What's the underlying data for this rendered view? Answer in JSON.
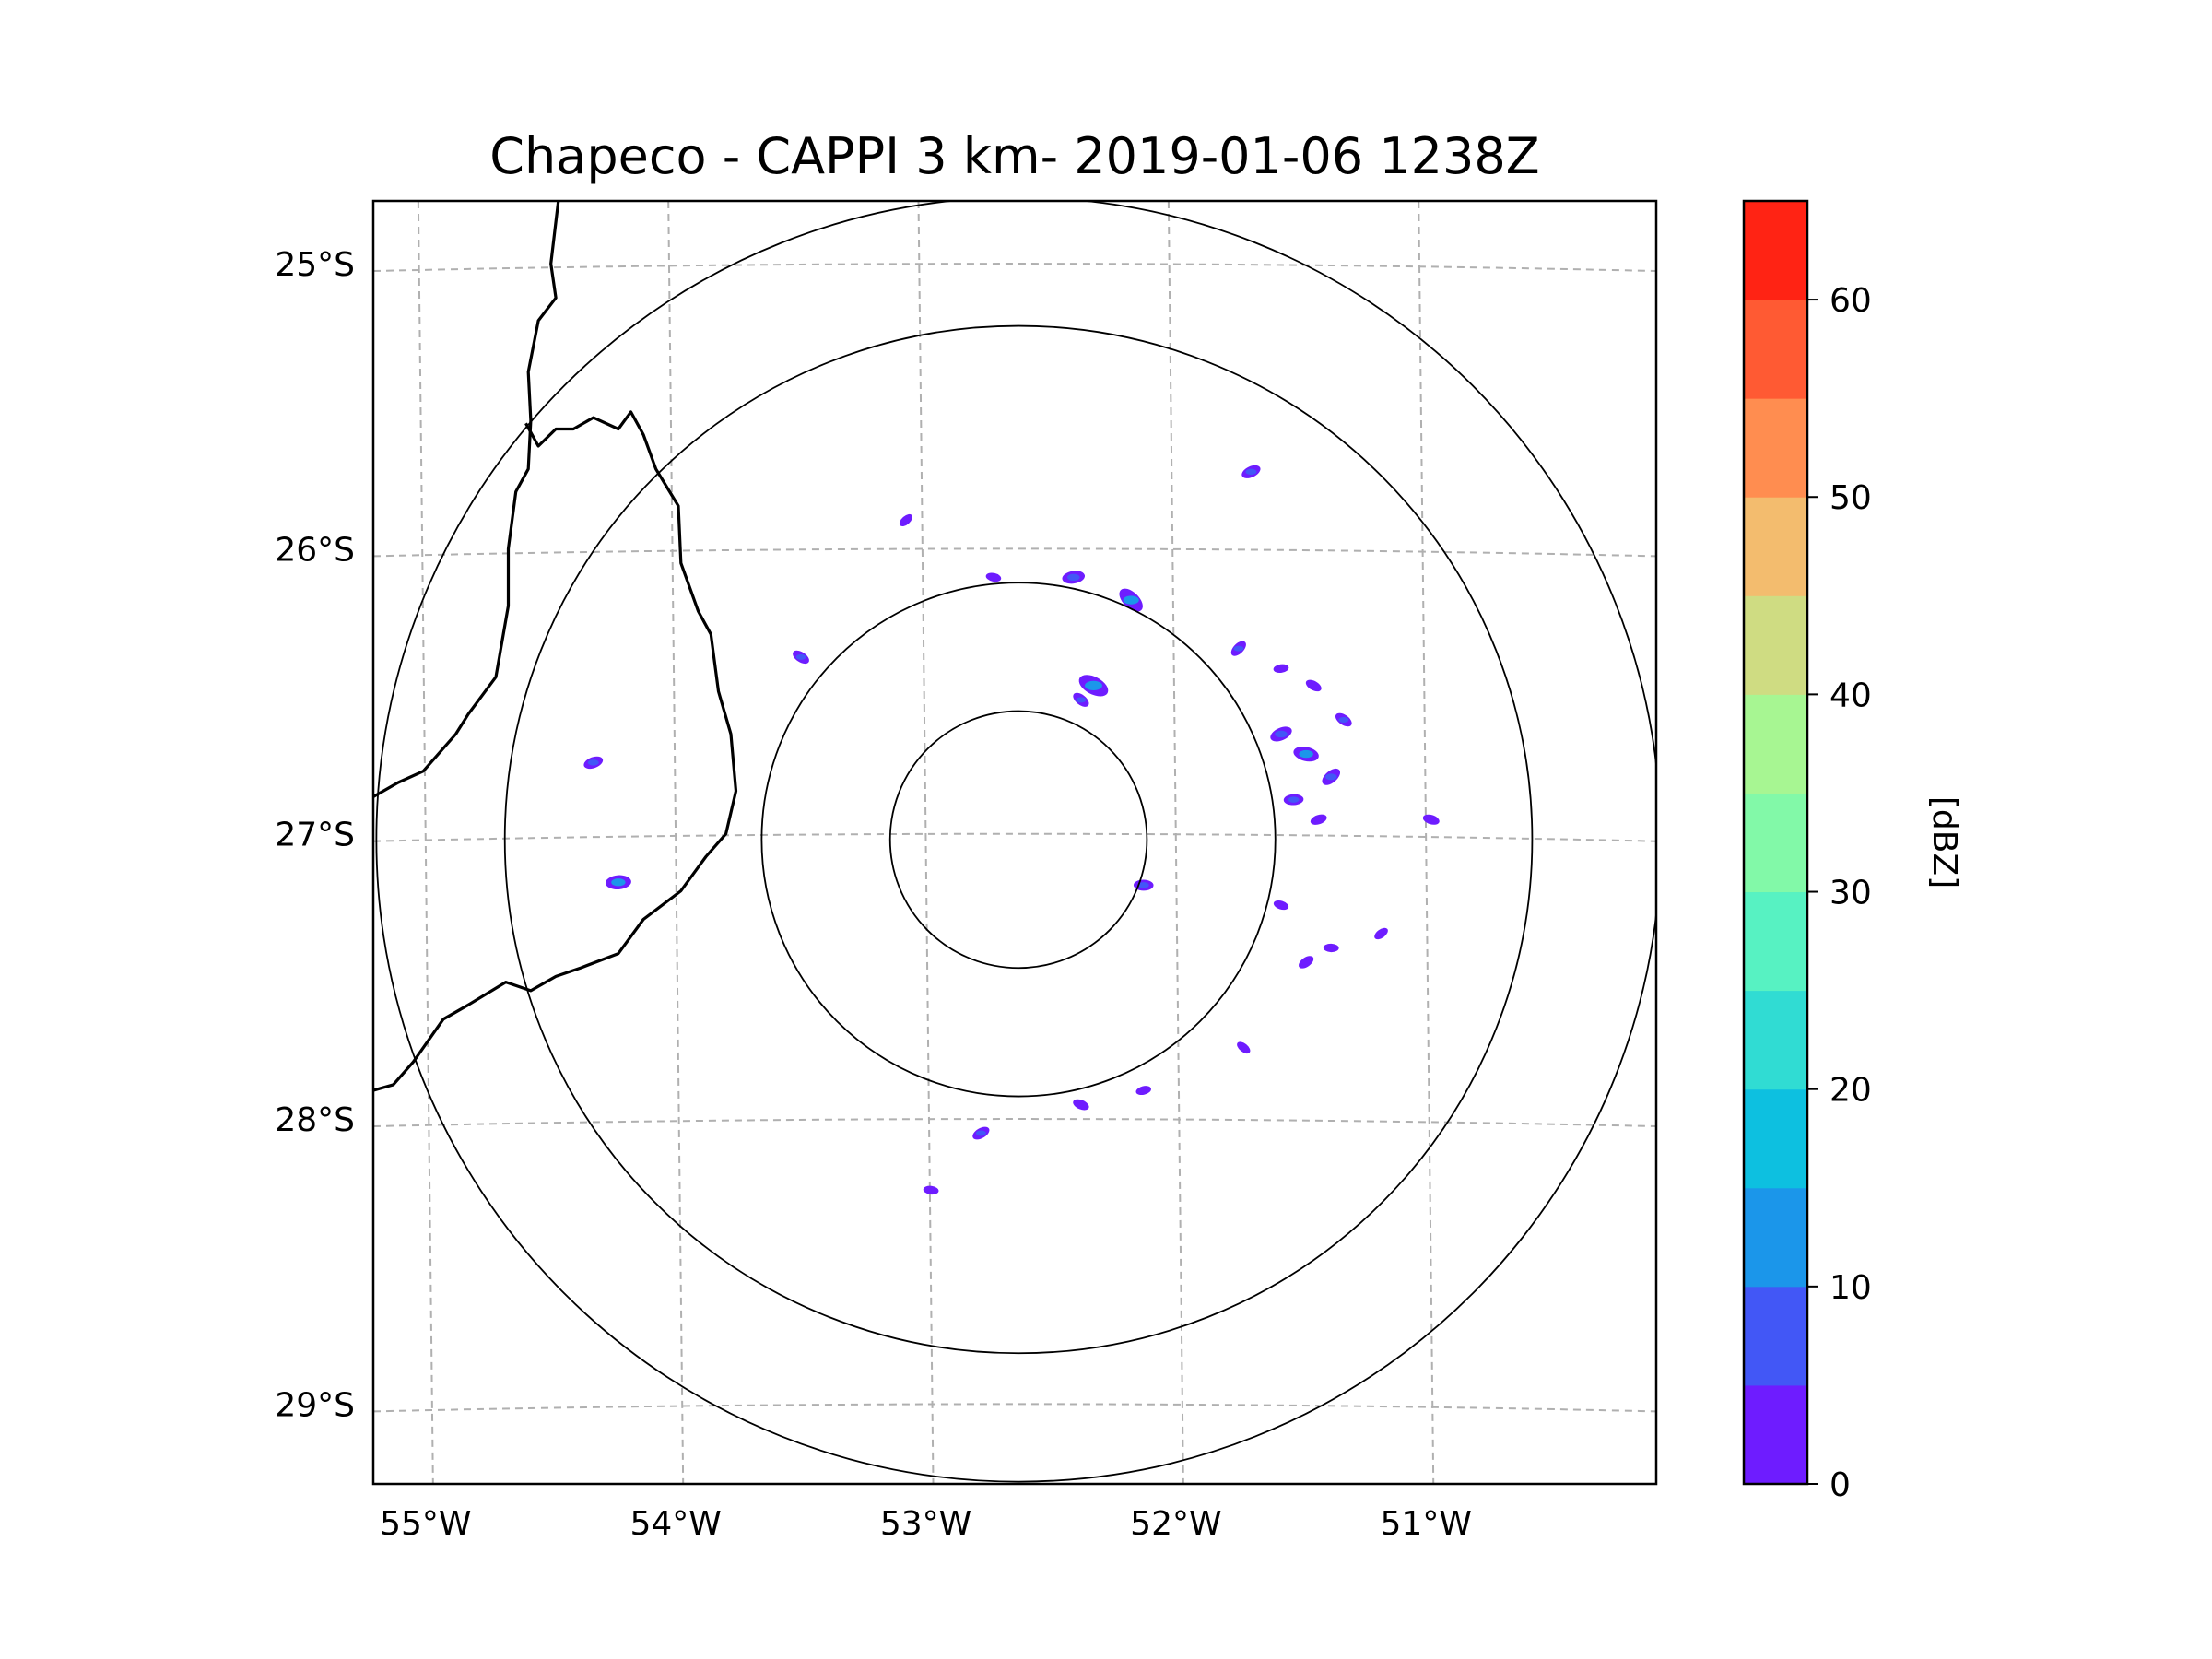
{
  "title": "Chapeco - CAPPI 3 km- 2019-01-06 1238Z",
  "map": {
    "lon_range": [
      -55.18,
      -50.05
    ],
    "lat_range": [
      -29.28,
      -24.78
    ],
    "radar_center": {
      "lon": -52.6,
      "lat": -27.02
    },
    "range_rings_km": [
      50,
      100,
      200,
      250
    ],
    "gridlines": "dashed",
    "lon_ticks": [
      {
        "value": -55,
        "label": "55°W"
      },
      {
        "value": -54,
        "label": "54°W"
      },
      {
        "value": -53,
        "label": "53°W"
      },
      {
        "value": -52,
        "label": "52°W"
      },
      {
        "value": -51,
        "label": "51°W"
      }
    ],
    "lat_ticks": [
      {
        "value": -25,
        "label": "25°S"
      },
      {
        "value": -26,
        "label": "26°S"
      },
      {
        "value": -27,
        "label": "27°S"
      },
      {
        "value": -28,
        "label": "28°S"
      },
      {
        "value": -29,
        "label": "29°S"
      }
    ],
    "borders": [
      {
        "name": "argentina-paraguay-border",
        "points": [
          [
            -54.44,
            -24.78
          ],
          [
            -54.47,
            -25.0
          ],
          [
            -54.45,
            -25.12
          ],
          [
            -54.52,
            -25.2
          ],
          [
            -54.56,
            -25.38
          ],
          [
            -54.55,
            -25.55
          ],
          [
            -54.56,
            -25.72
          ],
          [
            -54.61,
            -25.8
          ],
          [
            -54.64,
            -26.0
          ],
          [
            -54.64,
            -26.2
          ],
          [
            -54.69,
            -26.45
          ],
          [
            -54.8,
            -26.58
          ],
          [
            -54.85,
            -26.65
          ],
          [
            -54.98,
            -26.78
          ],
          [
            -55.08,
            -26.82
          ],
          [
            -55.18,
            -26.87
          ]
        ]
      },
      {
        "name": "argentina-brazil-border",
        "points": [
          [
            -54.57,
            -25.56
          ],
          [
            -54.52,
            -25.64
          ],
          [
            -54.45,
            -25.58
          ],
          [
            -54.38,
            -25.58
          ],
          [
            -54.3,
            -25.54
          ],
          [
            -54.2,
            -25.58
          ],
          [
            -54.15,
            -25.52
          ],
          [
            -54.1,
            -25.6
          ],
          [
            -54.05,
            -25.72
          ],
          [
            -53.96,
            -25.85
          ],
          [
            -53.95,
            -26.05
          ],
          [
            -53.88,
            -26.22
          ],
          [
            -53.83,
            -26.3
          ],
          [
            -53.8,
            -26.5
          ],
          [
            -53.75,
            -26.65
          ],
          [
            -53.73,
            -26.85
          ],
          [
            -53.77,
            -27.0
          ],
          [
            -53.85,
            -27.08
          ],
          [
            -53.95,
            -27.2
          ],
          [
            -54.1,
            -27.3
          ],
          [
            -54.2,
            -27.42
          ],
          [
            -54.35,
            -27.47
          ],
          [
            -54.45,
            -27.5
          ],
          [
            -54.55,
            -27.55
          ],
          [
            -54.65,
            -27.52
          ],
          [
            -54.8,
            -27.6
          ],
          [
            -54.9,
            -27.65
          ],
          [
            -55.02,
            -27.8
          ],
          [
            -55.1,
            -27.88
          ],
          [
            -55.18,
            -27.9
          ]
        ]
      }
    ]
  },
  "colorbar": {
    "label": "[dBZ]",
    "range": [
      0,
      65
    ],
    "levels": [
      0,
      5,
      10,
      15,
      20,
      25,
      30,
      35,
      40,
      45,
      50,
      55,
      60,
      65
    ],
    "colors": [
      "#6e1cff",
      "#4257f6",
      "#1b96ea",
      "#0dc0e0",
      "#30dcd3",
      "#57f2c2",
      "#82f9a8",
      "#a7f692",
      "#cfdc82",
      "#f3bc6e",
      "#ff8d50",
      "#ff5a33",
      "#ff2314"
    ],
    "tick_values": [
      0,
      10,
      20,
      30,
      40,
      50,
      60
    ],
    "tick_labels": [
      "0",
      "10",
      "20",
      "30",
      "40",
      "50",
      "60"
    ]
  },
  "echoes": [
    {
      "name": "echo-cell-ne-1",
      "lon": -51.72,
      "lat": -26.35,
      "dbz": 5
    },
    {
      "name": "echo-cell-ne-2",
      "lon": -51.55,
      "lat": -26.42,
      "dbz": 3
    },
    {
      "name": "echo-cell-ne-3",
      "lon": -51.42,
      "lat": -26.48,
      "dbz": 4
    },
    {
      "name": "echo-cell-e-1",
      "lon": -51.55,
      "lat": -26.65,
      "dbz": 8
    },
    {
      "name": "echo-cell-e-2",
      "lon": -51.45,
      "lat": -26.72,
      "dbz": 10
    },
    {
      "name": "echo-cell-e-3",
      "lon": -51.35,
      "lat": -26.8,
      "dbz": 7
    },
    {
      "name": "echo-cell-e-4",
      "lon": -51.5,
      "lat": -26.88,
      "dbz": 6
    },
    {
      "name": "echo-cell-e-5",
      "lon": -51.3,
      "lat": -26.6,
      "dbz": 5
    },
    {
      "name": "echo-cell-e-6",
      "lon": -51.4,
      "lat": -26.95,
      "dbz": 4
    },
    {
      "name": "echo-cell-se-1",
      "lon": -51.55,
      "lat": -27.25,
      "dbz": 3
    },
    {
      "name": "echo-cell-se-2",
      "lon": -51.45,
      "lat": -27.45,
      "dbz": 4
    },
    {
      "name": "echo-cell-se-3",
      "lon": -51.35,
      "lat": -27.4,
      "dbz": 3
    },
    {
      "name": "echo-cell-se-4",
      "lon": -51.7,
      "lat": -27.75,
      "dbz": 3
    },
    {
      "name": "echo-cell-s-1",
      "lon": -52.1,
      "lat": -27.9,
      "dbz": 3
    },
    {
      "name": "echo-cell-s-2",
      "lon": -52.35,
      "lat": -27.95,
      "dbz": 4
    },
    {
      "name": "echo-cell-s-3",
      "lon": -52.75,
      "lat": -28.05,
      "dbz": 5
    },
    {
      "name": "echo-cell-s-4",
      "lon": -52.95,
      "lat": -28.25,
      "dbz": 3
    },
    {
      "name": "echo-cell-n-1",
      "lon": -52.15,
      "lat": -26.18,
      "dbz": 12
    },
    {
      "name": "echo-cell-n-2",
      "lon": -52.38,
      "lat": -26.1,
      "dbz": 8
    },
    {
      "name": "echo-cell-n-3",
      "lon": -52.3,
      "lat": -26.48,
      "dbz": 14
    },
    {
      "name": "echo-cell-n-4",
      "lon": -51.67,
      "lat": -25.73,
      "dbz": 6
    },
    {
      "name": "echo-cell-nw-1",
      "lon": -52.7,
      "lat": -26.1,
      "dbz": 3
    },
    {
      "name": "echo-cell-nw-2",
      "lon": -53.05,
      "lat": -25.9,
      "dbz": 3
    },
    {
      "name": "echo-cell-w-1",
      "lon": -54.2,
      "lat": -27.17,
      "dbz": 10
    },
    {
      "name": "echo-cell-w-2",
      "lon": -53.47,
      "lat": -26.38,
      "dbz": 5
    },
    {
      "name": "echo-cell-w-3",
      "lon": -54.3,
      "lat": -26.75,
      "dbz": 6
    },
    {
      "name": "echo-cell-far-e-1",
      "lon": -50.95,
      "lat": -26.95,
      "dbz": 4
    },
    {
      "name": "echo-cell-far-e-2",
      "lon": -51.15,
      "lat": -27.35,
      "dbz": 3
    },
    {
      "name": "echo-cell-inner-1",
      "lon": -52.1,
      "lat": -27.18,
      "dbz": 6
    },
    {
      "name": "echo-cell-inner-2",
      "lon": -52.35,
      "lat": -26.53,
      "dbz": 5
    }
  ]
}
